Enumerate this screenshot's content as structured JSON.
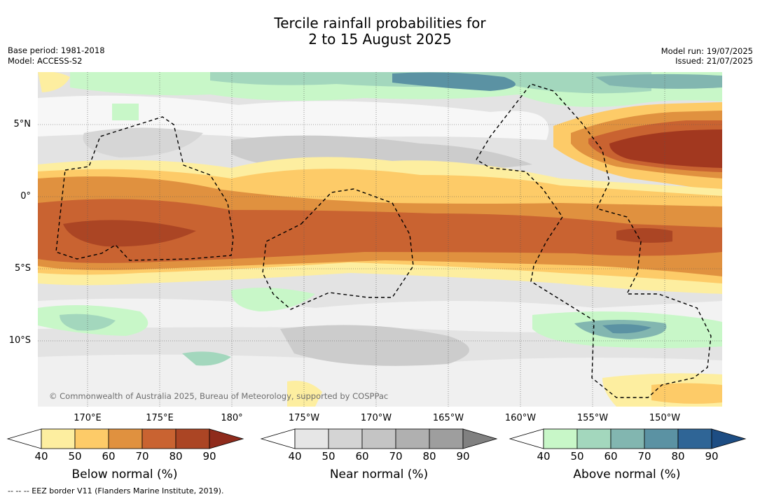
{
  "title_line1": "Tercile rainfall probabilities for",
  "title_line2": "2 to 15 August 2025",
  "base_period": "Base period: 1981-2018",
  "model": "Model: ACCESS-S2",
  "model_run": "Model run: 19/07/2025",
  "issued": "Issued: 21/07/2025",
  "lat_labels": [
    "5°N",
    "0°",
    "5°S",
    "10°S"
  ],
  "lon_labels": [
    "170°E",
    "175°E",
    "180°",
    "175°W",
    "170°W",
    "165°W",
    "160°W",
    "155°W",
    "150°W"
  ],
  "copyright": "© Commonwealth of Australia 2025, Bureau of Meteorology, supported by COSPPac",
  "footer": "-- -- -- EEZ border V11 (Flanders Marine Institute, 2019).",
  "colorbars": [
    {
      "title": "Below normal (%)",
      "ticks": [
        "40",
        "50",
        "60",
        "70",
        "80",
        "90"
      ],
      "colors": [
        "#ffffff",
        "#fdeea0",
        "#fdcb68",
        "#e0913f",
        "#c96331",
        "#ab4524",
        "#8f2b1c"
      ]
    },
    {
      "title": "Near normal (%)",
      "ticks": [
        "40",
        "50",
        "60",
        "70",
        "80",
        "90"
      ],
      "colors": [
        "#ffffff",
        "#e6e6e6",
        "#d4d4d4",
        "#c4c4c4",
        "#b0b0b0",
        "#9e9e9e",
        "#808080"
      ]
    },
    {
      "title": "Above normal (%)",
      "ticks": [
        "40",
        "50",
        "60",
        "70",
        "80",
        "90"
      ],
      "colors": [
        "#ffffff",
        "#c8f7c8",
        "#a3d7bd",
        "#82b6b0",
        "#5b92a3",
        "#2f6596",
        "#1d4d83"
      ]
    }
  ]
}
